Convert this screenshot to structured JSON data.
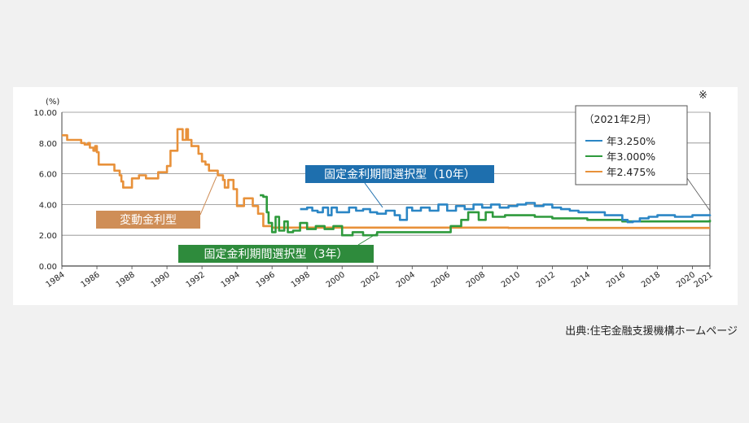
{
  "chart_data": {
    "type": "line",
    "y_unit_label": "(%)",
    "ylim": [
      0,
      10
    ],
    "y_ticks": [
      "0.00",
      "2.00",
      "4.00",
      "6.00",
      "8.00",
      "10.00"
    ],
    "y_tick_values": [
      0,
      2,
      4,
      6,
      8,
      10
    ],
    "xlim": [
      1984,
      2021
    ],
    "x_ticks": [
      "1984",
      "1986",
      "1988",
      "1990",
      "1992",
      "1994",
      "1996",
      "1998",
      "2000",
      "2002",
      "2004",
      "2006",
      "2008",
      "2010",
      "2012",
      "2014",
      "2016",
      "2018",
      "2020",
      "2021"
    ],
    "x_tick_values": [
      1984,
      1986,
      1988,
      1990,
      1992,
      1994,
      1996,
      1998,
      2000,
      2002,
      2004,
      2006,
      2008,
      2010,
      2012,
      2014,
      2016,
      2018,
      2020,
      2021
    ],
    "grid": "horizontal",
    "note_mark": "※",
    "legend": {
      "title": "（2021年2月）",
      "position": "top-right",
      "entries": [
        {
          "text": "年3.250%",
          "color": "#2b86c5"
        },
        {
          "text": "年3.000%",
          "color": "#2e9a3c"
        },
        {
          "text": "年2.475%",
          "color": "#e8913a"
        }
      ]
    },
    "series": [
      {
        "label": "変動金利型",
        "color": "#e8913a",
        "label_bg": "#cf8e57",
        "points": [
          [
            1984.0,
            8.5
          ],
          [
            1984.3,
            8.2
          ],
          [
            1984.9,
            8.2
          ],
          [
            1985.1,
            8.0
          ],
          [
            1985.3,
            7.9
          ],
          [
            1985.5,
            8.0
          ],
          [
            1985.6,
            7.7
          ],
          [
            1985.8,
            7.5
          ],
          [
            1985.9,
            7.8
          ],
          [
            1986.0,
            7.4
          ],
          [
            1986.1,
            6.6
          ],
          [
            1986.9,
            6.6
          ],
          [
            1987.0,
            6.2
          ],
          [
            1987.3,
            5.9
          ],
          [
            1987.4,
            5.5
          ],
          [
            1987.5,
            5.1
          ],
          [
            1987.8,
            5.1
          ],
          [
            1988.0,
            5.7
          ],
          [
            1988.4,
            5.9
          ],
          [
            1988.8,
            5.7
          ],
          [
            1989.3,
            5.7
          ],
          [
            1989.5,
            6.1
          ],
          [
            1989.9,
            6.1
          ],
          [
            1990.0,
            6.5
          ],
          [
            1990.2,
            7.5
          ],
          [
            1990.5,
            7.5
          ],
          [
            1990.6,
            8.9
          ],
          [
            1990.8,
            8.9
          ],
          [
            1990.9,
            8.2
          ],
          [
            1991.1,
            8.9
          ],
          [
            1991.2,
            8.2
          ],
          [
            1991.4,
            7.8
          ],
          [
            1991.7,
            7.8
          ],
          [
            1991.8,
            7.3
          ],
          [
            1992.0,
            6.8
          ],
          [
            1992.2,
            6.6
          ],
          [
            1992.4,
            6.2
          ],
          [
            1992.8,
            6.2
          ],
          [
            1992.9,
            5.9
          ],
          [
            1993.2,
            5.6
          ],
          [
            1993.3,
            5.1
          ],
          [
            1993.5,
            5.6
          ],
          [
            1993.7,
            5.6
          ],
          [
            1993.8,
            5.0
          ],
          [
            1994.0,
            3.9
          ],
          [
            1994.3,
            3.9
          ],
          [
            1994.4,
            4.4
          ],
          [
            1994.6,
            4.4
          ],
          [
            1994.9,
            3.9
          ],
          [
            1995.2,
            3.4
          ],
          [
            1995.5,
            2.6
          ],
          [
            1996.0,
            2.5
          ],
          [
            2009.5,
            2.475
          ],
          [
            2021.0,
            2.475
          ]
        ]
      },
      {
        "label": "固定金利期間選択型（3年）",
        "color": "#2e9a3c",
        "label_bg": "#2e8b3c",
        "points": [
          [
            1995.3,
            4.6
          ],
          [
            1995.5,
            4.5
          ],
          [
            1995.7,
            3.5
          ],
          [
            1995.8,
            2.8
          ],
          [
            1996.0,
            2.2
          ],
          [
            1996.2,
            3.2
          ],
          [
            1996.4,
            2.3
          ],
          [
            1996.7,
            2.9
          ],
          [
            1996.9,
            2.2
          ],
          [
            1997.2,
            2.3
          ],
          [
            1997.6,
            2.8
          ],
          [
            1998.0,
            2.4
          ],
          [
            1998.5,
            2.6
          ],
          [
            1999.0,
            2.4
          ],
          [
            1999.5,
            2.6
          ],
          [
            2000.0,
            2.0
          ],
          [
            2000.6,
            2.2
          ],
          [
            2001.2,
            2.0
          ],
          [
            2002.0,
            2.2
          ],
          [
            2005.5,
            2.2
          ],
          [
            2006.2,
            2.6
          ],
          [
            2006.8,
            3.0
          ],
          [
            2007.2,
            3.5
          ],
          [
            2007.8,
            3.0
          ],
          [
            2008.2,
            3.5
          ],
          [
            2008.6,
            3.2
          ],
          [
            2009.3,
            3.3
          ],
          [
            2010.0,
            3.3
          ],
          [
            2011.0,
            3.2
          ],
          [
            2012.0,
            3.1
          ],
          [
            2014.0,
            3.0
          ],
          [
            2016.0,
            2.9
          ],
          [
            2021.0,
            3.0
          ]
        ]
      },
      {
        "label": "固定金利期間選択型（10年）",
        "color": "#2b86c5",
        "label_bg": "#1e6fae",
        "points": [
          [
            1997.6,
            3.7
          ],
          [
            1998.0,
            3.8
          ],
          [
            1998.3,
            3.6
          ],
          [
            1998.6,
            3.5
          ],
          [
            1998.9,
            3.8
          ],
          [
            1999.2,
            3.3
          ],
          [
            1999.4,
            3.8
          ],
          [
            1999.7,
            3.5
          ],
          [
            2000.0,
            3.5
          ],
          [
            2000.4,
            3.8
          ],
          [
            2000.8,
            3.6
          ],
          [
            2001.2,
            3.7
          ],
          [
            2001.6,
            3.5
          ],
          [
            2002.0,
            3.4
          ],
          [
            2002.5,
            3.6
          ],
          [
            2003.0,
            3.3
          ],
          [
            2003.3,
            3.0
          ],
          [
            2003.7,
            3.8
          ],
          [
            2004.0,
            3.6
          ],
          [
            2004.5,
            3.8
          ],
          [
            2005.0,
            3.6
          ],
          [
            2005.5,
            4.0
          ],
          [
            2006.0,
            3.6
          ],
          [
            2006.5,
            3.9
          ],
          [
            2007.0,
            3.7
          ],
          [
            2007.5,
            4.0
          ],
          [
            2008.0,
            3.8
          ],
          [
            2008.5,
            4.0
          ],
          [
            2009.0,
            3.8
          ],
          [
            2009.5,
            3.9
          ],
          [
            2010.0,
            4.0
          ],
          [
            2010.5,
            4.1
          ],
          [
            2011.0,
            3.9
          ],
          [
            2011.5,
            4.0
          ],
          [
            2012.0,
            3.8
          ],
          [
            2012.5,
            3.7
          ],
          [
            2013.0,
            3.6
          ],
          [
            2013.5,
            3.5
          ],
          [
            2014.0,
            3.5
          ],
          [
            2014.5,
            3.5
          ],
          [
            2015.0,
            3.3
          ],
          [
            2015.5,
            3.3
          ],
          [
            2016.0,
            3.0
          ],
          [
            2016.3,
            2.85
          ],
          [
            2016.6,
            2.9
          ],
          [
            2017.0,
            3.1
          ],
          [
            2017.5,
            3.2
          ],
          [
            2018.0,
            3.3
          ],
          [
            2018.5,
            3.3
          ],
          [
            2019.0,
            3.2
          ],
          [
            2019.5,
            3.2
          ],
          [
            2020.0,
            3.3
          ],
          [
            2020.5,
            3.3
          ],
          [
            2021.0,
            3.25
          ]
        ]
      }
    ]
  },
  "source": "出典:住宅金融支援機構ホームページ"
}
